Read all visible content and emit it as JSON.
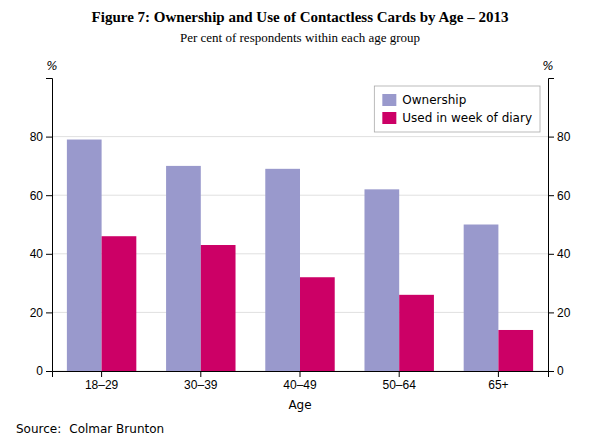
{
  "chart_data": {
    "type": "bar",
    "title": "Figure 7: Ownership and Use of Contactless Cards by Age – 2013",
    "subtitle": "Per cent of respondents within each age group",
    "xlabel": "Age",
    "ylabel": "%",
    "y2label": "%",
    "annotations": [
      "Source:",
      "Colmar Brunton"
    ],
    "categories": [
      "18–29",
      "30–39",
      "40–49",
      "50–64",
      "65+"
    ],
    "series": [
      {
        "name": "Ownership",
        "color": "#9999cc",
        "values": [
          79,
          70,
          69,
          62,
          50
        ]
      },
      {
        "name": "Used in week of diary",
        "color": "#cc0066",
        "values": [
          46,
          43,
          32,
          26,
          14
        ]
      }
    ],
    "ylim": [
      0,
      100
    ],
    "yticks": [
      0,
      20,
      40,
      60,
      80
    ],
    "y2lim": [
      0,
      100
    ],
    "y2ticks": [
      0,
      20,
      40,
      60,
      80
    ],
    "grid": true,
    "legend": "upper right"
  }
}
